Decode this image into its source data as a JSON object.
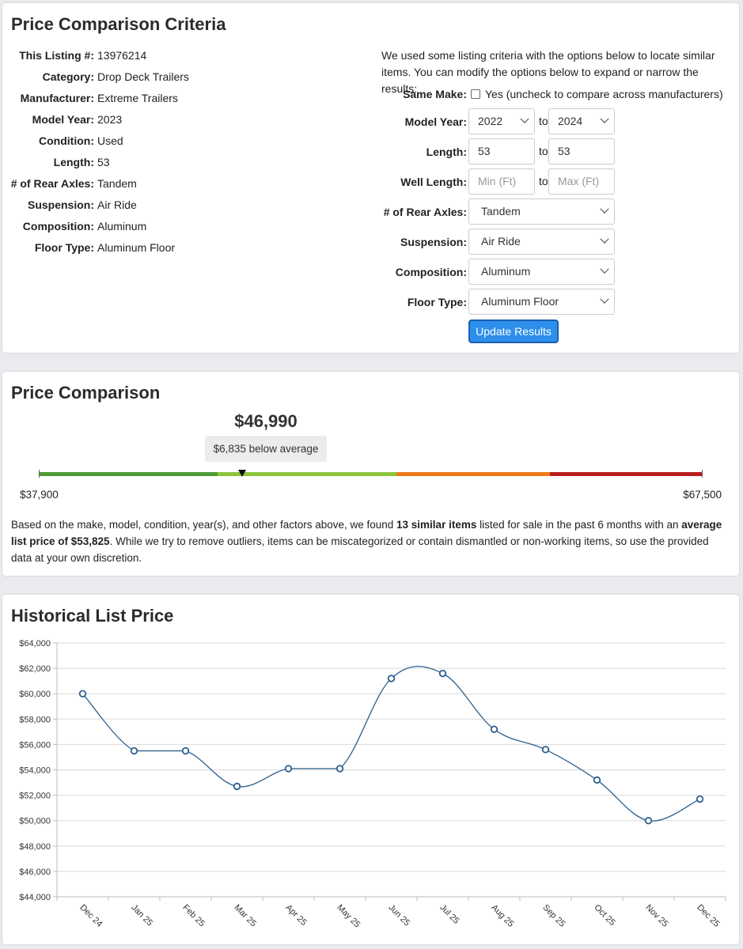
{
  "criteria": {
    "title": "Price Comparison Criteria",
    "specs": [
      {
        "label": "This Listing #:",
        "value": "13976214"
      },
      {
        "label": "Category:",
        "value": "Drop Deck Trailers"
      },
      {
        "label": "Manufacturer:",
        "value": "Extreme Trailers"
      },
      {
        "label": "Model Year:",
        "value": "2023"
      },
      {
        "label": "Condition:",
        "value": "Used"
      },
      {
        "label": "Length:",
        "value": "53"
      },
      {
        "label": "# of Rear Axles:",
        "value": "Tandem"
      },
      {
        "label": "Suspension:",
        "value": "Air Ride"
      },
      {
        "label": "Composition:",
        "value": "Aluminum"
      },
      {
        "label": "Floor Type:",
        "value": "Aluminum Floor"
      }
    ],
    "intro": "We used some listing criteria with the options below to locate similar items. You can modify the options below to expand or narrow the results:",
    "same_make": {
      "label": "Same Make:",
      "text": "Yes (uncheck to compare across manufacturers)",
      "checked": false
    },
    "model_year": {
      "label": "Model Year:",
      "from": "2022",
      "to_label": "to",
      "to": "2024"
    },
    "length": {
      "label": "Length:",
      "from": "53",
      "to_label": "to",
      "to": "53"
    },
    "well_length": {
      "label": "Well Length:",
      "from_placeholder": "Min (Ft)",
      "to_label": "to",
      "to_placeholder": "Max (Ft)"
    },
    "rear_axles": {
      "label": "# of Rear Axles:",
      "value": "Tandem"
    },
    "suspension": {
      "label": "Suspension:",
      "value": "Air Ride"
    },
    "composition": {
      "label": "Composition:",
      "value": "Aluminum"
    },
    "floor_type": {
      "label": "Floor Type:",
      "value": "Aluminum Floor"
    },
    "update_button": "Update Results"
  },
  "comparison": {
    "title": "Price Comparison",
    "price": "$46,990",
    "badge": "$6,835 below average",
    "gauge_min": "$37,900",
    "gauge_max": "$67,500",
    "gauge_colors": [
      "#4a9a36",
      "#8cc43c",
      "#ec7a17",
      "#b81d1d"
    ],
    "summary_1": "Based on the make, model, condition, year(s), and other factors above, we found ",
    "summary_bold_1": "13 similar items",
    "summary_2": " listed for sale in the past 6 months with an ",
    "summary_bold_2": "average list price of $53,825",
    "summary_3": ". While we try to remove outliers, items can be miscategorized or contain dismantled or non-working items, so use the provided data at your own discretion."
  },
  "history": {
    "title": "Historical List Price"
  },
  "chart_data": {
    "type": "line",
    "categories": [
      "Dec 24",
      "Jan 25",
      "Feb 25",
      "Mar 25",
      "Apr 25",
      "May 25",
      "Jun 25",
      "Jul 25",
      "Aug 25",
      "Sep 25",
      "Oct 25",
      "Nov 25",
      "Dec 25"
    ],
    "values": [
      60000,
      55500,
      55500,
      52700,
      54100,
      54100,
      61200,
      61600,
      57200,
      55600,
      53200,
      50000,
      51700
    ],
    "yticks": [
      "$64,000",
      "$62,000",
      "$60,000",
      "$58,000",
      "$56,000",
      "$54,000",
      "$52,000",
      "$50,000",
      "$48,000",
      "$46,000",
      "$44,000"
    ],
    "ylim": [
      44000,
      64000
    ],
    "line_color": "#2c5f8f",
    "grid": true
  }
}
